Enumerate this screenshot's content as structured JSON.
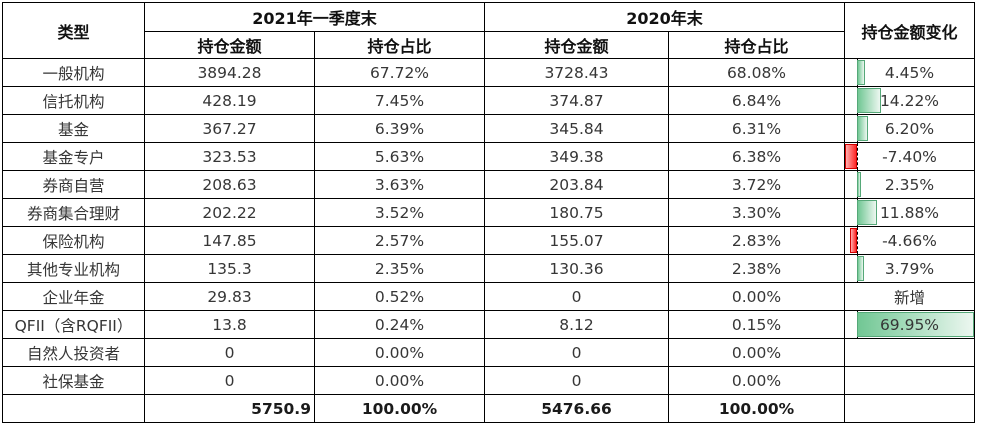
{
  "table": {
    "header": {
      "type_label": "类型",
      "period1_label": "2021年一季度末",
      "period2_label": "2020年末",
      "amount_label": "持仓金额",
      "share_label": "持仓占比",
      "change_label": "持仓金额变化"
    },
    "rows": [
      {
        "type": "一般机构",
        "p1_amount": "3894.28",
        "p1_share": "67.72%",
        "p2_amount": "3728.43",
        "p2_share": "68.08%",
        "change": "4.45%",
        "change_value": 4.45
      },
      {
        "type": "信托机构",
        "p1_amount": "428.19",
        "p1_share": "7.45%",
        "p2_amount": "374.87",
        "p2_share": "6.84%",
        "change": "14.22%",
        "change_value": 14.22
      },
      {
        "type": "基金",
        "p1_amount": "367.27",
        "p1_share": "6.39%",
        "p2_amount": "345.84",
        "p2_share": "6.31%",
        "change": "6.20%",
        "change_value": 6.2
      },
      {
        "type": "基金专户",
        "p1_amount": "323.53",
        "p1_share": "5.63%",
        "p2_amount": "349.38",
        "p2_share": "6.38%",
        "change": "-7.40%",
        "change_value": -7.4
      },
      {
        "type": "券商自营",
        "p1_amount": "208.63",
        "p1_share": "3.63%",
        "p2_amount": "203.84",
        "p2_share": "3.72%",
        "change": "2.35%",
        "change_value": 2.35
      },
      {
        "type": "券商集合理财",
        "p1_amount": "202.22",
        "p1_share": "3.52%",
        "p2_amount": "180.75",
        "p2_share": "3.30%",
        "change": "11.88%",
        "change_value": 11.88
      },
      {
        "type": "保险机构",
        "p1_amount": "147.85",
        "p1_share": "2.57%",
        "p2_amount": "155.07",
        "p2_share": "2.83%",
        "change": "-4.66%",
        "change_value": -4.66
      },
      {
        "type": "其他专业机构",
        "p1_amount": "135.3",
        "p1_share": "2.35%",
        "p2_amount": "130.36",
        "p2_share": "2.38%",
        "change": "3.79%",
        "change_value": 3.79
      },
      {
        "type": "企业年金",
        "p1_amount": "29.83",
        "p1_share": "0.52%",
        "p2_amount": "0",
        "p2_share": "0.00%",
        "change": "新增",
        "change_value": null
      },
      {
        "type": "QFII（含RQFII）",
        "p1_amount": "13.8",
        "p1_share": "0.24%",
        "p2_amount": "8.12",
        "p2_share": "0.15%",
        "change": "69.95%",
        "change_value": 69.95
      },
      {
        "type": "自然人投资者",
        "p1_amount": "0",
        "p1_share": "0.00%",
        "p2_amount": "0",
        "p2_share": "0.00%",
        "change": "",
        "change_value": null
      },
      {
        "type": "社保基金",
        "p1_amount": "0",
        "p1_share": "0.00%",
        "p2_amount": "0",
        "p2_share": "0.00%",
        "change": "",
        "change_value": null
      }
    ],
    "total": {
      "type": "",
      "p1_amount": "5750.9",
      "p1_share": "100.00%",
      "p2_amount": "5476.66",
      "p2_share": "100.00%",
      "change": ""
    },
    "bar_scale": {
      "min": -7.4,
      "max": 69.95,
      "axis_percent": 9.566
    },
    "colors": {
      "positive_bar_fill_start": "#71c794",
      "positive_bar_fill_end": "#ecf7f0",
      "positive_bar_border": "#55a878",
      "negative_bar_fill": "#ff2626",
      "negative_bar_border": "#d40000",
      "grid_border": "#000000",
      "text": "#363636"
    }
  }
}
